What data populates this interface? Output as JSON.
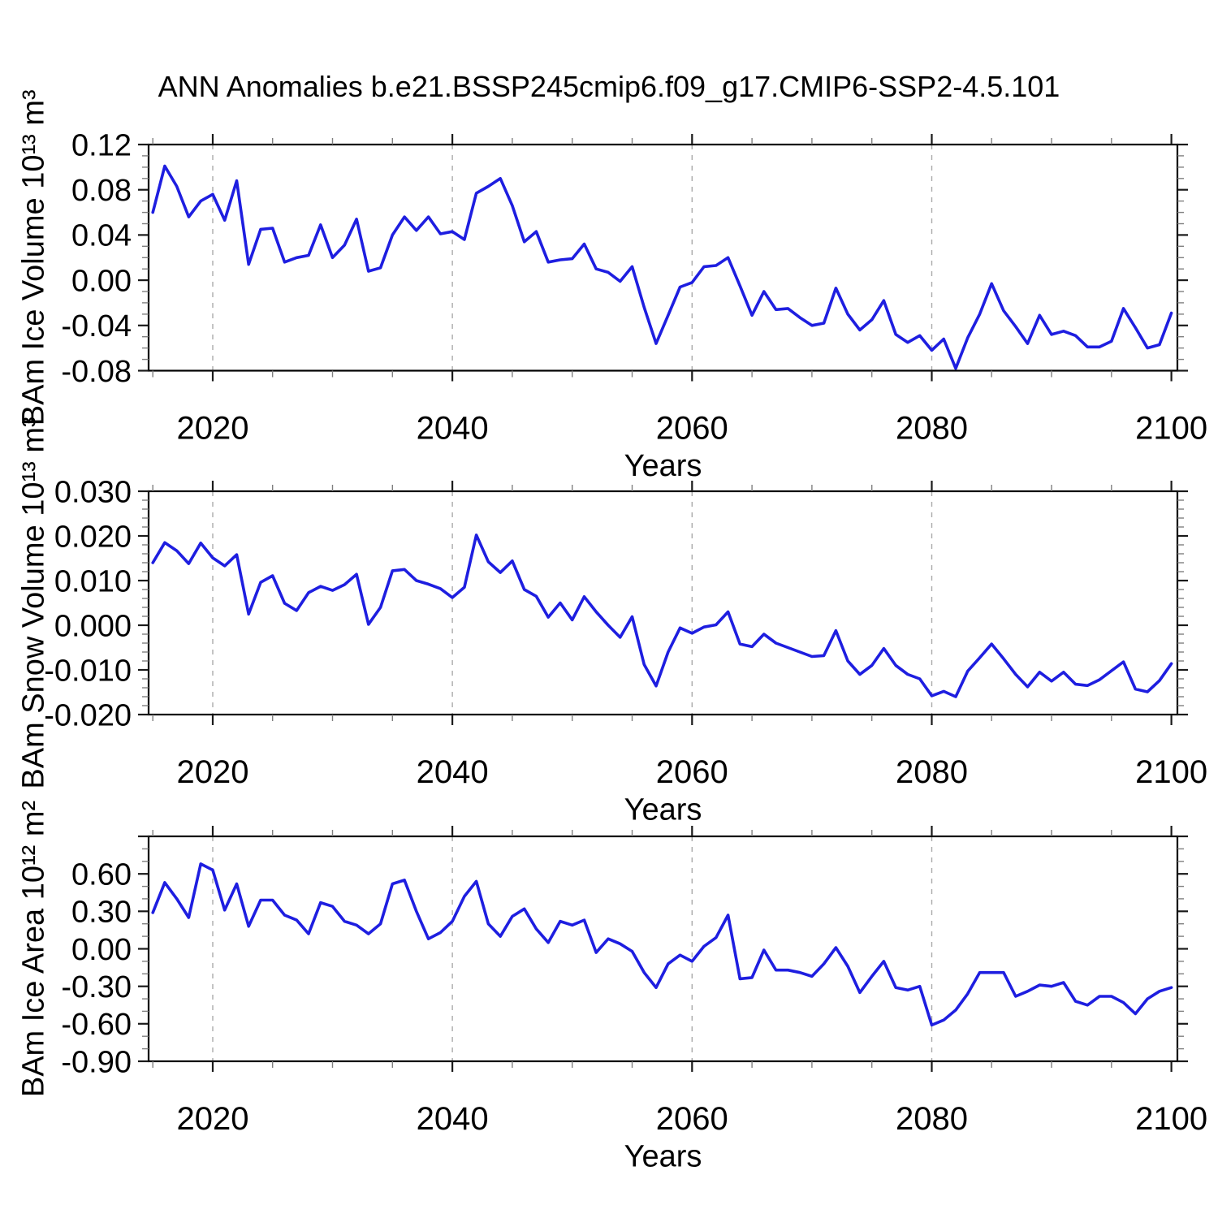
{
  "title": "ANN Anomalies b.e21.BSSP245cmip6.f09_g17.CMIP6-SSP2-4.5.101",
  "style": {
    "background": "#ffffff",
    "line_color": "#1e1ee0",
    "grid_color": "#aaaaaa",
    "frame_color": "#000000",
    "major_tick_color": "#1a1a1a",
    "minor_tick_color": "#808080",
    "text_color": "#000000"
  },
  "chart_data": [
    {
      "id": "ice-volume",
      "type": "line",
      "ylabel": "BAm Ice Volume 10¹³ m³",
      "xlabel": "Years",
      "legend": "none",
      "grid": "vertical-dashed",
      "x_start": 2015,
      "x_end": 2100,
      "x_step": 1,
      "xlim": [
        2014.65,
        2100.5
      ],
      "ylim": [
        -0.08,
        0.12
      ],
      "xticks": [
        2020,
        2040,
        2060,
        2080,
        2100
      ],
      "xtick_labels": [
        "2020",
        "2040",
        "2060",
        "2080",
        "2100"
      ],
      "x_minor_step": 5,
      "y_major_step": 0.04,
      "y_minor_step": 0.01,
      "ytick_labels": [
        [
          "0.12",
          0.12
        ],
        [
          "0.08",
          0.08
        ],
        [
          "0.04",
          0.04
        ],
        [
          "0.00",
          0.0
        ],
        [
          "-0.04",
          -0.04
        ],
        [
          "-0.08",
          -0.08
        ]
      ],
      "grid_x": [
        2020,
        2040,
        2060,
        2080
      ],
      "values": [
        0.06,
        0.101,
        0.083,
        0.056,
        0.07,
        0.076,
        0.053,
        0.088,
        0.014,
        0.045,
        0.046,
        0.016,
        0.02,
        0.022,
        0.049,
        0.02,
        0.031,
        0.054,
        0.008,
        0.011,
        0.04,
        0.056,
        0.044,
        0.056,
        0.041,
        0.043,
        0.036,
        0.077,
        0.083,
        0.09,
        0.066,
        0.034,
        0.043,
        0.016,
        0.018,
        0.019,
        0.032,
        0.01,
        0.007,
        -0.001,
        0.012,
        -0.024,
        -0.056,
        -0.031,
        -0.006,
        -0.002,
        0.012,
        0.013,
        0.02,
        -0.005,
        -0.031,
        -0.01,
        -0.026,
        -0.025,
        -0.033,
        -0.04,
        -0.038,
        -0.007,
        -0.03,
        -0.044,
        -0.035,
        -0.018,
        -0.048,
        -0.055,
        -0.049,
        -0.062,
        -0.052,
        -0.078,
        -0.051,
        -0.03,
        -0.003,
        -0.027,
        -0.041,
        -0.056,
        -0.031,
        -0.048,
        -0.045,
        -0.049,
        -0.059,
        -0.059,
        -0.054,
        -0.025,
        -0.042,
        -0.06,
        -0.057,
        -0.029
      ]
    },
    {
      "id": "snow-volume",
      "type": "line",
      "ylabel": "BAm Snow Volume 10¹³ m³",
      "xlabel": "Years",
      "legend": "none",
      "grid": "vertical-dashed",
      "x_start": 2015,
      "x_end": 2100,
      "x_step": 1,
      "xlim": [
        2014.65,
        2100.5
      ],
      "ylim": [
        -0.02,
        0.03
      ],
      "xticks": [
        2020,
        2040,
        2060,
        2080,
        2100
      ],
      "xtick_labels": [
        "2020",
        "2040",
        "2060",
        "2080",
        "2100"
      ],
      "x_minor_step": 5,
      "y_major_step": 0.01,
      "y_minor_step": 0.002,
      "ytick_labels": [
        [
          "0.030",
          0.03
        ],
        [
          "0.020",
          0.02
        ],
        [
          "0.010",
          0.01
        ],
        [
          "0.000",
          0.0
        ],
        [
          "-0.010",
          -0.01
        ],
        [
          "-0.020",
          -0.02
        ]
      ],
      "grid_x": [
        2020,
        2040,
        2060,
        2080
      ],
      "values": [
        0.014,
        0.0185,
        0.0167,
        0.0138,
        0.0184,
        0.0151,
        0.0133,
        0.0158,
        0.0025,
        0.0096,
        0.0111,
        0.0049,
        0.0033,
        0.0073,
        0.0087,
        0.0078,
        0.0091,
        0.0114,
        0.0002,
        0.004,
        0.0122,
        0.0125,
        0.01,
        0.0092,
        0.0082,
        0.0062,
        0.0085,
        0.0202,
        0.0142,
        0.0118,
        0.0144,
        0.008,
        0.0065,
        0.0018,
        0.005,
        0.0012,
        0.0064,
        0.003,
        0.0,
        -0.0027,
        0.0019,
        -0.0088,
        -0.0136,
        -0.006,
        -0.0006,
        -0.0018,
        -0.0004,
        0.0001,
        0.003,
        -0.0042,
        -0.0048,
        -0.002,
        -0.004,
        -0.005,
        -0.006,
        -0.007,
        -0.0068,
        -0.0012,
        -0.008,
        -0.011,
        -0.009,
        -0.0052,
        -0.009,
        -0.011,
        -0.012,
        -0.0158,
        -0.0148,
        -0.016,
        -0.0103,
        -0.0073,
        -0.0042,
        -0.0075,
        -0.011,
        -0.0138,
        -0.0105,
        -0.0125,
        -0.0105,
        -0.0132,
        -0.0135,
        -0.0122,
        -0.0102,
        -0.0082,
        -0.0143,
        -0.0149,
        -0.0124,
        -0.0086
      ]
    },
    {
      "id": "ice-area",
      "type": "line",
      "ylabel": "BAm Ice Area 10¹² m²",
      "xlabel": "Years",
      "legend": "none",
      "grid": "vertical-dashed",
      "x_start": 2015,
      "x_end": 2100,
      "x_step": 1,
      "xlim": [
        2014.65,
        2100.5
      ],
      "ylim": [
        -0.9,
        0.9
      ],
      "xticks": [
        2020,
        2040,
        2060,
        2080,
        2100
      ],
      "xtick_labels": [
        "2020",
        "2040",
        "2060",
        "2080",
        "2100"
      ],
      "x_minor_step": 5,
      "y_major_step": 0.3,
      "y_minor_step": 0.1,
      "ytick_labels": [
        [
          "0.60",
          0.6
        ],
        [
          "0.30",
          0.3
        ],
        [
          "0.00",
          0.0
        ],
        [
          "-0.30",
          -0.3
        ],
        [
          "-0.60",
          -0.6
        ],
        [
          "-0.90",
          -0.9
        ]
      ],
      "grid_x": [
        2020,
        2040,
        2060,
        2080
      ],
      "values": [
        0.29,
        0.53,
        0.4,
        0.25,
        0.68,
        0.63,
        0.31,
        0.52,
        0.18,
        0.39,
        0.39,
        0.27,
        0.23,
        0.12,
        0.37,
        0.34,
        0.22,
        0.19,
        0.12,
        0.2,
        0.52,
        0.55,
        0.3,
        0.08,
        0.13,
        0.22,
        0.42,
        0.54,
        0.2,
        0.1,
        0.26,
        0.32,
        0.16,
        0.05,
        0.22,
        0.19,
        0.23,
        -0.03,
        0.08,
        0.04,
        -0.02,
        -0.19,
        -0.31,
        -0.12,
        -0.05,
        -0.1,
        0.02,
        0.09,
        0.27,
        -0.24,
        -0.23,
        -0.01,
        -0.17,
        -0.17,
        -0.19,
        -0.22,
        -0.12,
        0.01,
        -0.14,
        -0.35,
        -0.22,
        -0.1,
        -0.31,
        -0.33,
        -0.3,
        -0.61,
        -0.57,
        -0.49,
        -0.36,
        -0.19,
        -0.19,
        -0.19,
        -0.38,
        -0.34,
        -0.29,
        -0.3,
        -0.27,
        -0.42,
        -0.45,
        -0.38,
        -0.38,
        -0.43,
        -0.52,
        -0.4,
        -0.34,
        -0.31
      ]
    }
  ]
}
